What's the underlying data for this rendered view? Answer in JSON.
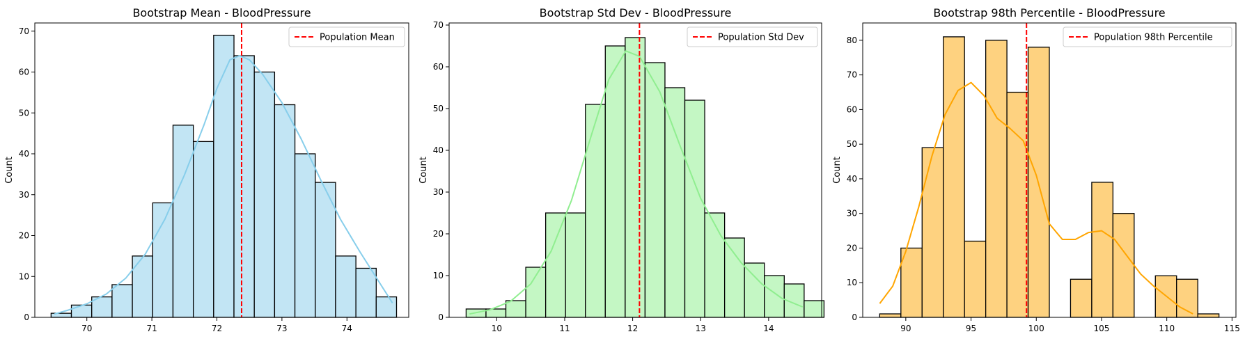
{
  "chart_data": [
    {
      "type": "bar",
      "title": "Bootstrap Mean - BloodPressure",
      "xlabel": "",
      "ylabel": "Count",
      "xlim": [
        69.2,
        74.95
      ],
      "ylim": [
        0,
        72
      ],
      "xticks": [
        70,
        71,
        72,
        73,
        74
      ],
      "yticks": [
        0,
        10,
        20,
        30,
        40,
        50,
        60,
        70
      ],
      "bin_start": 69.45,
      "bin_width": 0.3125,
      "values": [
        1,
        3,
        5,
        8,
        15,
        28,
        47,
        43,
        69,
        64,
        60,
        52,
        40,
        33,
        15,
        12,
        5
      ],
      "kde": [
        [
          69.5,
          0.8
        ],
        [
          69.7,
          1.7
        ],
        [
          70.0,
          3.3
        ],
        [
          70.3,
          5.7
        ],
        [
          70.6,
          9.6
        ],
        [
          70.9,
          15.5
        ],
        [
          71.2,
          24.0
        ],
        [
          71.5,
          34.8
        ],
        [
          71.8,
          47.0
        ],
        [
          72.0,
          56.0
        ],
        [
          72.2,
          63.0
        ],
        [
          72.35,
          64.0
        ],
        [
          72.5,
          63.0
        ],
        [
          72.7,
          59.5
        ],
        [
          73.0,
          52.5
        ],
        [
          73.3,
          43.5
        ],
        [
          73.6,
          33.5
        ],
        [
          73.9,
          24.0
        ],
        [
          74.2,
          16.0
        ],
        [
          74.5,
          8.5
        ],
        [
          74.7,
          3.5
        ]
      ],
      "reference_line": {
        "x": 72.38,
        "label": "Population Mean"
      },
      "colors": {
        "fill": "#c2e5f4",
        "edge": "#000000",
        "kde": "#87ceeb"
      }
    },
    {
      "type": "bar",
      "title": "Bootstrap Std Dev - BloodPressure",
      "xlabel": "",
      "ylabel": "Count",
      "xlim": [
        9.3,
        14.78
      ],
      "ylim": [
        0,
        70.5
      ],
      "xticks": [
        10,
        11,
        12,
        13,
        14
      ],
      "yticks": [
        0,
        10,
        20,
        30,
        40,
        50,
        60,
        70
      ],
      "bin_start": 9.55,
      "bin_width": 0.2925,
      "values": [
        2,
        2,
        4,
        12,
        25,
        25,
        51,
        65,
        67,
        61,
        55,
        52,
        25,
        19,
        13,
        10,
        8,
        4
      ],
      "kde": [
        [
          9.6,
          0.8
        ],
        [
          9.9,
          1.8
        ],
        [
          10.2,
          3.8
        ],
        [
          10.5,
          8.0
        ],
        [
          10.8,
          15.8
        ],
        [
          11.1,
          28.0
        ],
        [
          11.4,
          44.0
        ],
        [
          11.65,
          57.0
        ],
        [
          11.9,
          63.8
        ],
        [
          12.1,
          62.5
        ],
        [
          12.4,
          54.0
        ],
        [
          12.7,
          41.0
        ],
        [
          13.0,
          28.5
        ],
        [
          13.3,
          19.5
        ],
        [
          13.6,
          13.0
        ],
        [
          13.9,
          8.0
        ],
        [
          14.2,
          4.5
        ],
        [
          14.5,
          2.5
        ]
      ],
      "reference_line": {
        "x": 12.1,
        "label": "Population Std Dev"
      },
      "colors": {
        "fill": "#c4f7c4",
        "edge": "#000000",
        "kde": "#90ee90"
      }
    },
    {
      "type": "bar",
      "title": "Bootstrap 98th Percentile - BloodPressure",
      "xlabel": "",
      "ylabel": "Count",
      "xlim": [
        86.7,
        115.3
      ],
      "ylim": [
        0,
        85
      ],
      "xticks": [
        90,
        95,
        100,
        105,
        110,
        115
      ],
      "yticks": [
        0,
        10,
        20,
        30,
        40,
        50,
        60,
        70,
        80
      ],
      "bin_start": 88.0,
      "bin_width": 1.625,
      "values": [
        1,
        20,
        49,
        81,
        22,
        80,
        65,
        78,
        0,
        11,
        39,
        30,
        0,
        12,
        11,
        1
      ],
      "kde": [
        [
          88.0,
          4.0
        ],
        [
          89.0,
          9.0
        ],
        [
          90.0,
          19.0
        ],
        [
          91.0,
          32.0
        ],
        [
          92.0,
          46.5
        ],
        [
          93.0,
          58.5
        ],
        [
          94.0,
          65.5
        ],
        [
          95.0,
          67.8
        ],
        [
          96.0,
          64.0
        ],
        [
          97.0,
          57.5
        ],
        [
          98.0,
          54.5
        ],
        [
          99.0,
          51.0
        ],
        [
          100.0,
          41.0
        ],
        [
          101.0,
          27.0
        ],
        [
          102.0,
          22.5
        ],
        [
          103.0,
          22.5
        ],
        [
          104.0,
          24.5
        ],
        [
          105.0,
          25.0
        ],
        [
          106.0,
          22.5
        ],
        [
          107.0,
          17.5
        ],
        [
          108.0,
          12.5
        ],
        [
          109.0,
          9.0
        ],
        [
          110.0,
          6.0
        ],
        [
          111.0,
          3.0
        ],
        [
          112.0,
          1.0
        ]
      ],
      "reference_line": {
        "x": 99.25,
        "label": "Population 98th Percentile"
      },
      "colors": {
        "fill": "#fed280",
        "edge": "#000000",
        "kde": "#ffa500"
      }
    }
  ]
}
